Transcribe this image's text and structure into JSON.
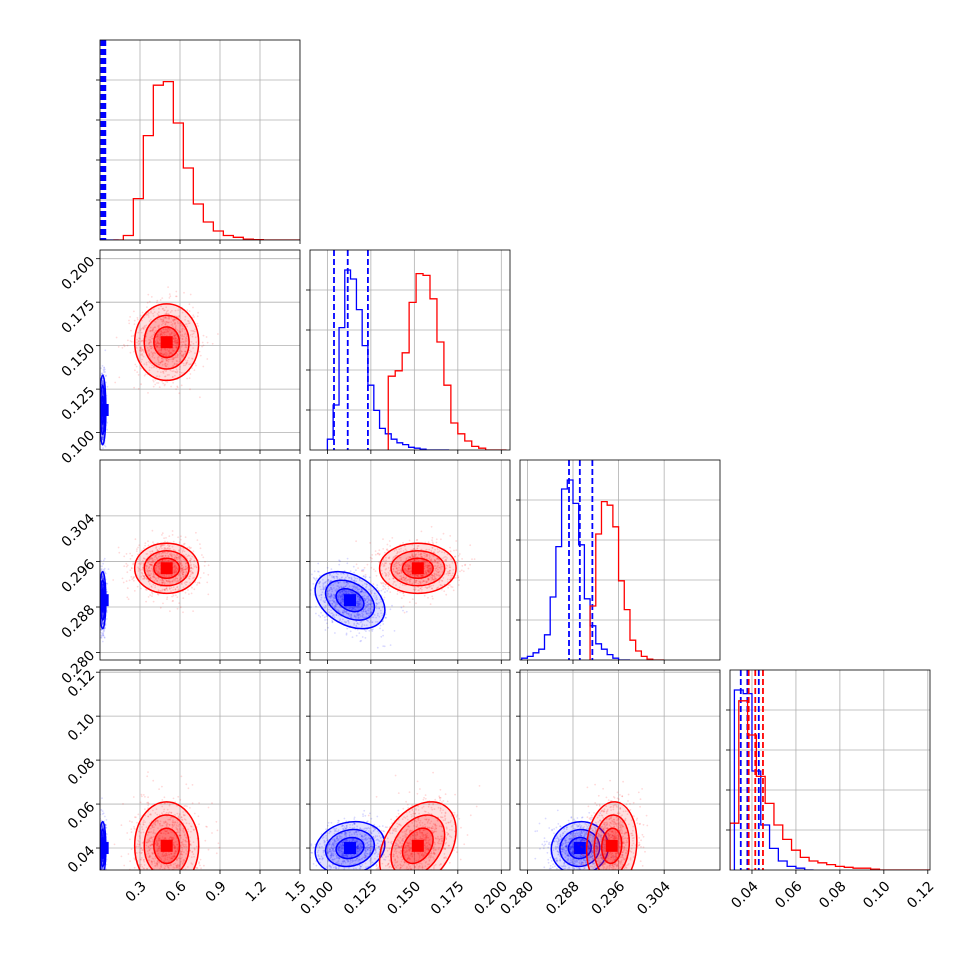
{
  "chart_data": {
    "type": "corner",
    "description_axes": [
      {
        "range": [
          0.0,
          1.5
        ],
        "ticks": [
          0.3,
          0.6,
          0.9,
          1.2,
          1.5
        ],
        "tick_labels": [
          "0.3",
          "0.6",
          "0.9",
          "1.2",
          "1.5"
        ]
      },
      {
        "range": [
          0.09,
          0.205
        ],
        "ticks": [
          0.1,
          0.125,
          0.15,
          0.175,
          0.2
        ],
        "tick_labels": [
          "0.100",
          "0.125",
          "0.150",
          "0.175",
          "0.200"
        ]
      },
      {
        "range": [
          0.2787,
          0.3138
        ],
        "ticks": [
          0.28,
          0.288,
          0.296,
          0.304
        ],
        "tick_labels": [
          "0.280",
          "0.288",
          "0.296",
          "0.304"
        ]
      },
      {
        "range": [
          0.03,
          0.121
        ],
        "ticks": [
          0.04,
          0.06,
          0.08,
          0.1,
          0.12
        ],
        "tick_labels": [
          "0.04",
          "0.06",
          "0.08",
          "0.10",
          "0.12"
        ]
      }
    ],
    "series": [
      {
        "color": "#0000ff",
        "histograms": [
          {
            "bins": [
              0.0,
              0.02,
              0.04,
              0.06,
              0.08,
              0.1,
              0.12,
              0.14
            ],
            "counts": [
              0,
              0,
              0,
              0,
              0,
              0,
              0
            ]
          },
          {
            "bins": [
              0.1,
              0.1033,
              0.1067,
              0.11,
              0.1133,
              0.1167,
              0.12,
              0.1233,
              0.1267,
              0.13,
              0.1333,
              0.1367,
              0.14,
              0.1433,
              0.1467,
              0.15,
              0.1533,
              0.1567,
              0.16,
              0.1633,
              0.1667,
              0.17
            ],
            "counts": [
              0.06,
              0.25,
              0.68,
              1.0,
              0.95,
              0.78,
              0.58,
              0.36,
              0.22,
              0.12,
              0.09,
              0.06,
              0.04,
              0.03,
              0.015,
              0.01,
              0.005,
              0.0,
              0.0,
              0.0,
              0.0
            ]
          },
          {
            "bins": [
              0.279,
              0.28,
              0.281,
              0.282,
              0.283,
              0.284,
              0.285,
              0.286,
              0.287,
              0.288,
              0.289,
              0.29,
              0.291,
              0.292,
              0.293,
              0.294,
              0.295,
              0.296,
              0.297,
              0.298
            ],
            "counts": [
              0.01,
              0.02,
              0.04,
              0.06,
              0.14,
              0.35,
              0.63,
              0.95,
              1.0,
              0.87,
              0.64,
              0.34,
              0.19,
              0.09,
              0.06,
              0.03,
              0.01,
              0.0,
              0.0
            ]
          },
          {
            "bins": [
              0.032,
              0.036,
              0.04,
              0.044,
              0.048,
              0.052,
              0.056,
              0.06,
              0.064,
              0.068
            ],
            "counts": [
              1.0,
              0.98,
              0.55,
              0.25,
              0.12,
              0.05,
              0.02,
              0.01,
              0.0
            ]
          }
        ],
        "quantiles": [
          [
            0.01,
            0.02,
            0.03,
            0.04
          ],
          [
            0.1038,
            0.1117,
            0.1233
          ],
          [
            0.2873,
            0.2892,
            0.2914
          ],
          [
            0.0349,
            0.0379,
            0.0431
          ]
        ]
      },
      {
        "color": "#ff0000",
        "histograms": [
          {
            "bins": [
              0.1,
              0.175,
              0.25,
              0.325,
              0.4,
              0.475,
              0.55,
              0.625,
              0.7,
              0.775,
              0.85,
              0.925,
              1.0,
              1.075,
              1.15,
              1.225,
              1.3,
              1.375,
              1.45,
              1.5
            ],
            "counts": [
              0.0,
              0.025,
              0.23,
              0.58,
              0.86,
              0.88,
              0.65,
              0.4,
              0.2,
              0.1,
              0.05,
              0.025,
              0.015,
              0.005,
              0.002,
              0.0,
              0.0,
              0.0,
              0.0
            ]
          },
          {
            "bins": [
              0.135,
              0.139,
              0.143,
              0.147,
              0.151,
              0.155,
              0.159,
              0.163,
              0.167,
              0.171,
              0.175,
              0.179,
              0.183,
              0.187,
              0.191,
              0.195,
              0.199,
              0.203
            ],
            "counts": [
              0.41,
              0.44,
              0.54,
              0.82,
              0.98,
              0.97,
              0.84,
              0.6,
              0.36,
              0.15,
              0.09,
              0.05,
              0.02,
              0.01,
              0.0,
              0.0,
              0.0
            ]
          },
          {
            "bins": [
              0.291,
              0.292,
              0.293,
              0.294,
              0.295,
              0.296,
              0.297,
              0.298,
              0.299,
              0.3,
              0.301,
              0.302,
              0.303,
              0.304
            ],
            "counts": [
              0.3,
              0.7,
              0.88,
              0.86,
              0.74,
              0.44,
              0.28,
              0.11,
              0.05,
              0.02,
              0.005,
              0.0,
              0.0
            ]
          },
          {
            "bins": [
              0.03,
              0.034,
              0.038,
              0.042,
              0.046,
              0.05,
              0.054,
              0.058,
              0.062,
              0.066,
              0.07,
              0.074,
              0.078,
              0.082,
              0.086,
              0.09,
              0.094,
              0.098,
              0.102,
              0.106,
              0.11,
              0.114,
              0.118,
              0.121
            ],
            "counts": [
              0.26,
              0.94,
              0.75,
              0.52,
              0.37,
              0.25,
              0.17,
              0.11,
              0.07,
              0.05,
              0.04,
              0.03,
              0.02,
              0.015,
              0.01,
              0.01,
              0.005,
              0.0,
              0.0,
              0.0,
              0.0,
              0.0,
              0.0
            ]
          }
        ],
        "quantiles": [
          [],
          [],
          [],
          [
            0.0385,
            0.0415,
            0.045
          ]
        ]
      }
    ],
    "gaussians": [
      {
        "color": "#0000ff",
        "mean": [
          0.02,
          0.113,
          0.2892,
          0.04
        ],
        "std": [
          0.012,
          0.01,
          0.0025,
          0.006
        ],
        "corr": {
          "0-1": 0.0,
          "0-2": 0.0,
          "0-3": 0.0,
          "1-2": -0.35,
          "1-3": 0.15,
          "2-3": 0.05
        }
      },
      {
        "color": "#ff0000",
        "mean": [
          0.5,
          0.152,
          0.2948,
          0.041
        ],
        "std": [
          0.12,
          0.011,
          0.0022,
          0.01
        ],
        "corr": {
          "0-1": 0.0,
          "0-2": 0.0,
          "0-3": 0.0,
          "1-2": 0.0,
          "1-3": 0.35,
          "2-3": 0.1
        }
      }
    ]
  }
}
